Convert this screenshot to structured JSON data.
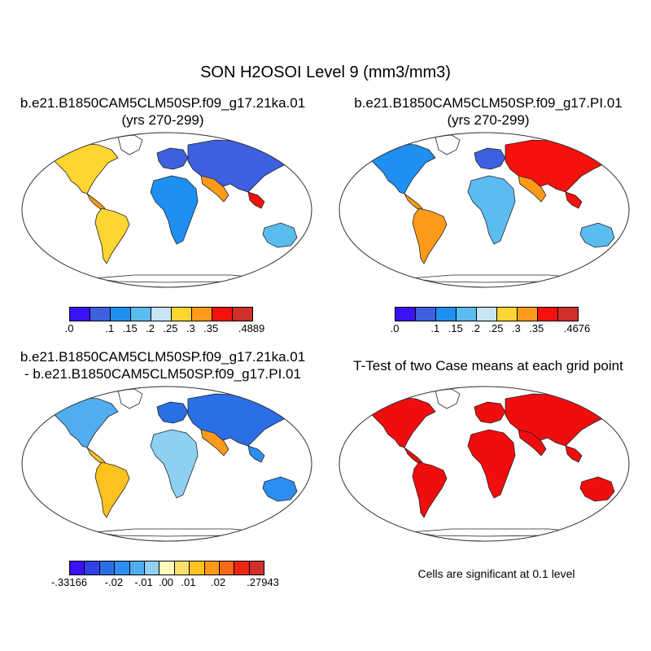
{
  "title": "SON H2OSOI Level 9 (mm3/mm3)",
  "panels": {
    "top_left": {
      "title_line1": "b.e21.B1850CAM5CLM50SP.f09_g17.21ka.01",
      "title_line2": "(yrs 270-299)"
    },
    "top_right": {
      "title_line1": "b.e21.B1850CAM5CLM50SP.f09_g17.PI.01",
      "title_line2": "(yrs 270-299)"
    },
    "bottom_left": {
      "title_line1": "b.e21.B1850CAM5CLM50SP.f09_g17.21ka.01",
      "title_line2": "- b.e21.B1850CAM5CLM50SP.f09_g17.PI.01"
    },
    "bottom_right": {
      "title_line1": "T-Test of two Case means at each grid point",
      "caption": "Cells are significant at 0.1 level"
    }
  },
  "colorbars": {
    "abs": {
      "colors": [
        "#3a12f5",
        "#3d5fe0",
        "#1f8ff2",
        "#5bbcf0",
        "#c7e6f5",
        "#fed531",
        "#fe9a1a",
        "#f5110c",
        "#d12f2a"
      ]
    },
    "diff": {
      "colors": [
        "#3a12f5",
        "#3140e5",
        "#2a6fe6",
        "#2c8ef0",
        "#4fadf0",
        "#8ed0f2",
        "#fffcbe",
        "#fee16a",
        "#fec21f",
        "#fe9a1a",
        "#f96a14",
        "#ec2614",
        "#d12f2a"
      ]
    },
    "signif_color": "#f00d0d"
  },
  "chart_data": [
    {
      "type": "heatmap",
      "title": "b.e21.B1850CAM5CLM50SP.f09_g17.21ka.01 (yrs 270-299)",
      "colorbar_labels": [
        ".0",
        ".1",
        ".15",
        ".2",
        ".25",
        ".3",
        ".35",
        ".4889"
      ]
    },
    {
      "type": "heatmap",
      "title": "b.e21.B1850CAM5CLM50SP.f09_g17.PI.01 (yrs 270-299)",
      "colorbar_labels": [
        ".0",
        ".1",
        ".15",
        ".2",
        ".25",
        ".3",
        ".35",
        ".4676"
      ]
    },
    {
      "type": "heatmap",
      "title": "b.e21.B1850CAM5CLM50SP.f09_g17.21ka.01 - b.e21.B1850CAM5CLM50SP.f09_g17.PI.01",
      "colorbar_labels": [
        "-.33166",
        "-.02",
        "-.01",
        ".00",
        ".01",
        ".02",
        ".27943"
      ]
    },
    {
      "type": "heatmap",
      "title": "T-Test of two Case means at each grid point",
      "colorbar_labels": []
    }
  ]
}
